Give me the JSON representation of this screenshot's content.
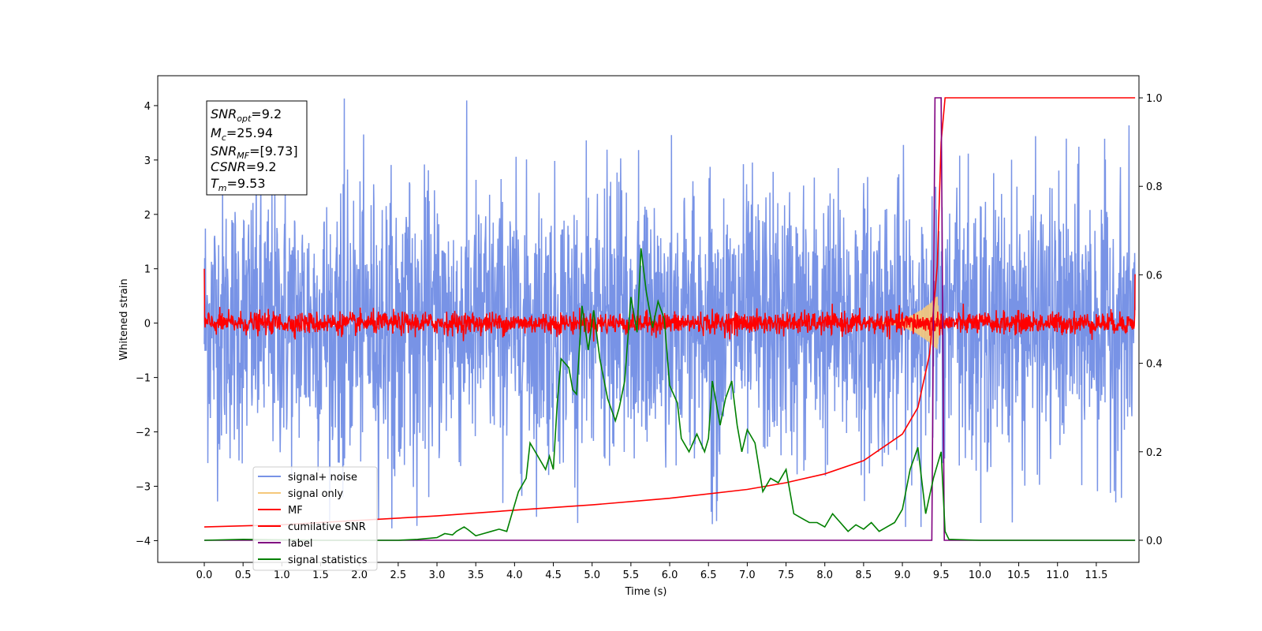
{
  "chart_data": {
    "type": "line",
    "xlabel": "Time (s)",
    "ylabel_left": "Whitened strain",
    "xlim": [
      -0.6,
      12.05
    ],
    "ylim_left": [
      -4.4,
      4.55
    ],
    "ylim_right": [
      -0.05,
      1.05
    ],
    "xticks": [
      "0.0",
      "0.5",
      "1.0",
      "1.5",
      "2.0",
      "2.5",
      "3.0",
      "3.5",
      "4.0",
      "4.5",
      "5.0",
      "5.5",
      "6.0",
      "6.5",
      "7.0",
      "7.5",
      "8.0",
      "8.5",
      "9.0",
      "9.5",
      "10.0",
      "10.5",
      "11.0",
      "11.5"
    ],
    "yticks_left": [
      "4",
      "3",
      "2",
      "1",
      "0",
      "−1",
      "−2",
      "−3",
      "−4"
    ],
    "yticks_right": [
      "1.0",
      "0.8",
      "0.6",
      "0.4",
      "0.2",
      "0.0"
    ],
    "grid": false,
    "legend_position": "lower-left",
    "annotation": {
      "lines": [
        {
          "var": "SNR",
          "sub": "opt",
          "value": "=9.2"
        },
        {
          "var": "M",
          "sub": "c",
          "value": "=25.94"
        },
        {
          "var": "SNR",
          "sub": "MF",
          "value": "=[9.73]"
        },
        {
          "var": "CSNR",
          "sub": "",
          "value": "=9.2"
        },
        {
          "var": "T",
          "sub": "m",
          "value": "=9.53"
        }
      ]
    },
    "series": [
      {
        "name": "signal+ noise",
        "color": "#7893e6",
        "axis": "left",
        "description_values": {
          "t_start": 0.0,
          "t_end": 12.0,
          "mean": 0.0,
          "std": 1.0,
          "max": 4.15,
          "min": -3.8
        }
      },
      {
        "name": "signal only",
        "color": "#f5c87a",
        "axis": "left",
        "description_values": {
          "peak_time": 9.45,
          "peak_amplitude": 0.5
        }
      },
      {
        "name": "MF",
        "color": "#ff0000",
        "axis": "left",
        "description_values": {
          "t_start": 0.0,
          "t_end": 12.0,
          "noise_std": 0.1,
          "edge_value": 1.0
        }
      },
      {
        "name": "cumilative SNR",
        "color": "#ff0000",
        "axis": "right",
        "points": [
          [
            0.0,
            0.03
          ],
          [
            1.0,
            0.035
          ],
          [
            2.0,
            0.045
          ],
          [
            3.0,
            0.055
          ],
          [
            4.0,
            0.068
          ],
          [
            5.0,
            0.08
          ],
          [
            6.0,
            0.095
          ],
          [
            7.0,
            0.115
          ],
          [
            7.5,
            0.13
          ],
          [
            8.0,
            0.15
          ],
          [
            8.5,
            0.18
          ],
          [
            9.0,
            0.24
          ],
          [
            9.2,
            0.3
          ],
          [
            9.35,
            0.42
          ],
          [
            9.45,
            0.62
          ],
          [
            9.5,
            0.9
          ],
          [
            9.55,
            1.0
          ],
          [
            12.0,
            1.0
          ]
        ]
      },
      {
        "name": "label",
        "color": "#800080",
        "axis": "right",
        "points": [
          [
            0.0,
            0.0
          ],
          [
            9.38,
            0.0
          ],
          [
            9.42,
            1.0
          ],
          [
            9.5,
            1.0
          ],
          [
            9.54,
            0.0
          ],
          [
            12.0,
            0.0
          ]
        ]
      },
      {
        "name": "signal statistics",
        "color": "#008000",
        "axis": "right",
        "points": [
          [
            0.0,
            0.0
          ],
          [
            0.5,
            0.002
          ],
          [
            1.0,
            0.001
          ],
          [
            1.5,
            0.0
          ],
          [
            2.0,
            0.0
          ],
          [
            2.5,
            0.0
          ],
          [
            2.75,
            0.002
          ],
          [
            3.0,
            0.006
          ],
          [
            3.1,
            0.015
          ],
          [
            3.2,
            0.012
          ],
          [
            3.25,
            0.02
          ],
          [
            3.35,
            0.03
          ],
          [
            3.4,
            0.024
          ],
          [
            3.5,
            0.01
          ],
          [
            3.6,
            0.015
          ],
          [
            3.7,
            0.02
          ],
          [
            3.8,
            0.025
          ],
          [
            3.9,
            0.02
          ],
          [
            3.95,
            0.05
          ],
          [
            4.05,
            0.11
          ],
          [
            4.15,
            0.14
          ],
          [
            4.2,
            0.22
          ],
          [
            4.3,
            0.19
          ],
          [
            4.4,
            0.16
          ],
          [
            4.45,
            0.19
          ],
          [
            4.5,
            0.16
          ],
          [
            4.55,
            0.31
          ],
          [
            4.6,
            0.41
          ],
          [
            4.7,
            0.39
          ],
          [
            4.75,
            0.34
          ],
          [
            4.8,
            0.33
          ],
          [
            4.87,
            0.53
          ],
          [
            4.95,
            0.43
          ],
          [
            5.02,
            0.52
          ],
          [
            5.1,
            0.41
          ],
          [
            5.2,
            0.32
          ],
          [
            5.3,
            0.27
          ],
          [
            5.35,
            0.3
          ],
          [
            5.42,
            0.36
          ],
          [
            5.5,
            0.55
          ],
          [
            5.58,
            0.47
          ],
          [
            5.63,
            0.66
          ],
          [
            5.7,
            0.56
          ],
          [
            5.78,
            0.48
          ],
          [
            5.85,
            0.54
          ],
          [
            5.93,
            0.5
          ],
          [
            6.0,
            0.35
          ],
          [
            6.05,
            0.33
          ],
          [
            6.1,
            0.31
          ],
          [
            6.15,
            0.23
          ],
          [
            6.25,
            0.2
          ],
          [
            6.35,
            0.24
          ],
          [
            6.45,
            0.2
          ],
          [
            6.5,
            0.23
          ],
          [
            6.55,
            0.36
          ],
          [
            6.65,
            0.26
          ],
          [
            6.72,
            0.32
          ],
          [
            6.8,
            0.36
          ],
          [
            6.87,
            0.26
          ],
          [
            6.93,
            0.2
          ],
          [
            7.0,
            0.25
          ],
          [
            7.1,
            0.22
          ],
          [
            7.2,
            0.11
          ],
          [
            7.3,
            0.14
          ],
          [
            7.4,
            0.13
          ],
          [
            7.5,
            0.16
          ],
          [
            7.6,
            0.06
          ],
          [
            7.7,
            0.05
          ],
          [
            7.8,
            0.04
          ],
          [
            7.9,
            0.04
          ],
          [
            8.0,
            0.03
          ],
          [
            8.1,
            0.06
          ],
          [
            8.2,
            0.04
          ],
          [
            8.3,
            0.02
          ],
          [
            8.4,
            0.035
          ],
          [
            8.5,
            0.025
          ],
          [
            8.6,
            0.04
          ],
          [
            8.7,
            0.02
          ],
          [
            8.8,
            0.03
          ],
          [
            8.9,
            0.04
          ],
          [
            9.0,
            0.07
          ],
          [
            9.1,
            0.16
          ],
          [
            9.2,
            0.21
          ],
          [
            9.3,
            0.06
          ],
          [
            9.4,
            0.14
          ],
          [
            9.5,
            0.2
          ],
          [
            9.55,
            0.02
          ],
          [
            9.6,
            0.002
          ],
          [
            10.0,
            0.0
          ],
          [
            12.0,
            0.0
          ]
        ]
      }
    ]
  }
}
